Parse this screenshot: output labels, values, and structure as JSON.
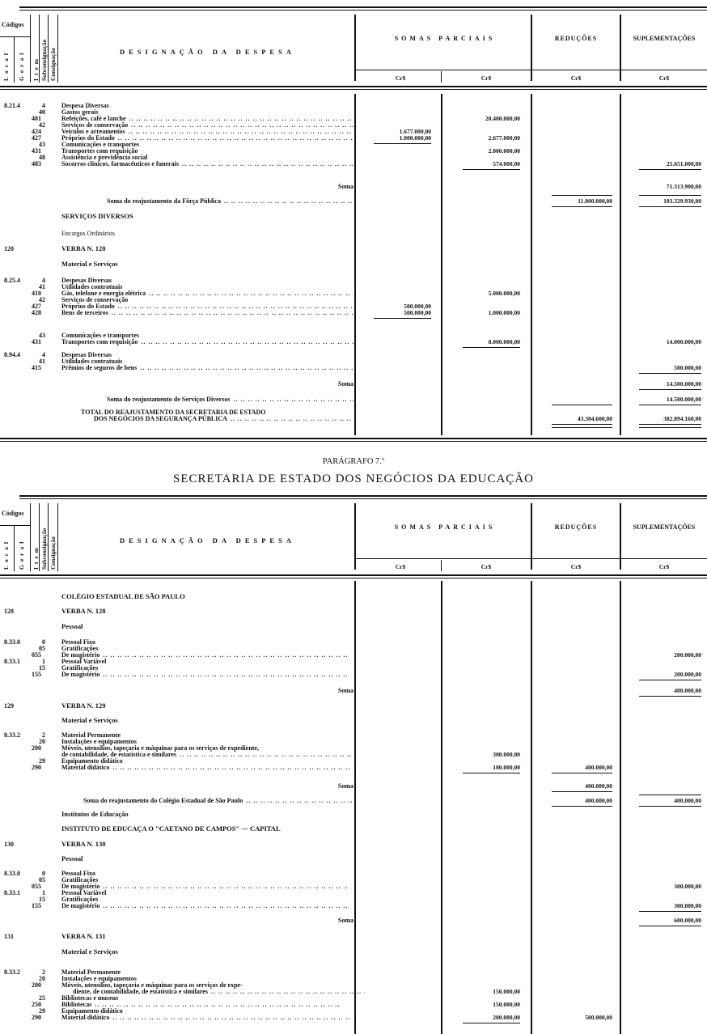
{
  "header": {
    "codigos": "Códigos",
    "local": "Local",
    "geral": "Geral",
    "item": "Item",
    "subconsignacao": "Subconsignação",
    "consignacao": "Consignação",
    "designacao": "DESIGNAÇÃO DA DESPESA",
    "somas_parciais": "SOMAS PARCIAIS",
    "reducoes": "REDUÇÕES",
    "suplementacoes": "SUPLEMENTAÇÕES",
    "currency": "Cr$"
  },
  "paragraph": {
    "number": "PARÁGRAFO 7.º",
    "title": "SECRETARIA DE ESTADO DOS NEGÓCIOS DA EDUCAÇÃO"
  },
  "sections": [
    {
      "rows": [
        {
          "code": "8.21.4",
          "num": "4",
          "text": "Despesa Diversas"
        },
        {
          "num": "40",
          "text": "Gastos gerais"
        },
        {
          "num": "401",
          "text": "Refeições, café e lanche",
          "dots": true,
          "c2": {
            "v": "20.400.000,00"
          }
        },
        {
          "num": "42",
          "text": "Serviços de conservação",
          "dots": true
        },
        {
          "num": "424",
          "text": "Veículos e arreamentos",
          "dots": true,
          "c1": {
            "v": "1.677.000,00"
          }
        },
        {
          "num": "427",
          "text": "Próprios do Estado",
          "dots": true,
          "c1": {
            "v": "1.000.000,00",
            "below": true
          },
          "c2": {
            "v": "2.677.000,00"
          }
        },
        {
          "num": "43",
          "text": "Comunicações e transportes"
        },
        {
          "num": "431",
          "text": "Transportes com requisição",
          "c2": {
            "v": "2.000.000,00"
          }
        },
        {
          "num": "48",
          "text": "Assistência e previdência social"
        },
        {
          "num": "483",
          "text": "Socorros clínicos, farmacêuticos e funerais",
          "dots": true,
          "c2": {
            "v": "574.000,00",
            "below": true
          },
          "c4": {
            "v": "25.651.000,00",
            "below": true
          }
        },
        {
          "style": "soma",
          "text": "Soma",
          "c4": {
            "v": "71.313.900,00"
          }
        },
        {
          "style": "subtotal",
          "text": "Soma do reajustamento da Fôrça Pública",
          "dots": true,
          "c3": {
            "v": "11.000.000,00",
            "above": true,
            "below": true
          },
          "c4": {
            "v": "103.329.930,00",
            "above": true,
            "below": true
          }
        },
        {
          "style": "heading",
          "text": "SERVIÇOS DIVERSOS"
        },
        {
          "style": "plain",
          "text": "Encargos Ordinários"
        },
        {
          "code": "120",
          "style": "heading",
          "text": "VERBA N. 120"
        },
        {
          "style": "heading",
          "text": "Material e Serviços"
        },
        {
          "code": "8.25.4",
          "num": "4",
          "text": "Despesas Diversas"
        },
        {
          "num": "41",
          "text": "Utilidades contratuais"
        },
        {
          "num": "410",
          "text": "Gás, telefone e energia elétrica",
          "dots": true,
          "c2": {
            "v": "5.000.000,00"
          }
        },
        {
          "num": "42",
          "text": "Serviços de conservação"
        },
        {
          "num": "427",
          "text": "Próprios do Estado",
          "dots": true,
          "c1": {
            "v": "500.000,00"
          }
        },
        {
          "num": "428",
          "text": "Bens de terceiros",
          "dots": true,
          "c1": {
            "v": "500.000,00",
            "below": true
          },
          "c2": {
            "v": "1.000.000,00"
          }
        },
        {
          "num": "43",
          "text": "Comunicações e transportes"
        },
        {
          "num": "431",
          "text": "Transportes com requisição",
          "dots": true,
          "c2": {
            "v": "8.000.000,00",
            "below": true
          },
          "c4": {
            "v": "14.000.000,00"
          }
        },
        {
          "code": "8.94.4",
          "num": "4",
          "text": "Despesas Diversas"
        },
        {
          "num": "41",
          "text": "Utilidades contratuais"
        },
        {
          "num": "415",
          "text": "Prêmios de seguros de bens",
          "dots": true,
          "c4": {
            "v": "500.000,00",
            "below": true
          }
        },
        {
          "style": "soma",
          "text": "Soma",
          "c4": {
            "v": "14.500.000,00",
            "below": true
          }
        },
        {
          "style": "subtotal",
          "text": "Soma do reajustamento de Serviços Diversos",
          "dots": true,
          "c4": {
            "v": "14.500.000,00",
            "below": true
          },
          "c3": {
            "v": "",
            "below": true
          }
        },
        {
          "style": "total",
          "text": "TOTAL DO REAJUSTAMENTO DA SECRETARIA DE ESTADO"
        },
        {
          "style": "total2",
          "text": "DOS NEGÓCIOS DA SEGURANÇA PÚBLICA",
          "dots": true,
          "c3": {
            "v": "43.304.600,00",
            "below": true,
            "double": true
          },
          "c4": {
            "v": "382.894.160,00",
            "below": true,
            "double": true
          }
        }
      ]
    },
    {
      "rows": [
        {
          "style": "heading",
          "text": "COLÉGIO ESTADUAL DE SÃO PAULO"
        },
        {
          "code": "128",
          "style": "heading",
          "text": "VERBA N. 128"
        },
        {
          "style": "heading",
          "text": "Pessoal"
        },
        {
          "code": "8.33.0",
          "num": "0",
          "text": "Pessoal Fixo"
        },
        {
          "num": "05",
          "text": "Gratificações"
        },
        {
          "num": "055",
          "text": "De magistério",
          "dots": true,
          "c4": {
            "v": "200.000,00"
          }
        },
        {
          "code": "8.33.1",
          "num": "1",
          "text": "Pessoal Variável"
        },
        {
          "num": "15",
          "text": "Gratificações"
        },
        {
          "num": "155",
          "text": "De magistério",
          "dots": true,
          "c4": {
            "v": "200.000,00",
            "below": true
          }
        },
        {
          "style": "soma",
          "text": "Soma",
          "c4": {
            "v": "400.000,00",
            "below": true
          }
        },
        {
          "code": "129",
          "style": "heading",
          "text": "VERBA N. 129"
        },
        {
          "style": "heading",
          "text": "Material e Serviços"
        },
        {
          "code": "8.33.2",
          "num": "2",
          "text": "Material Permanente"
        },
        {
          "num": "20",
          "text": "Instalações e equipamentos"
        },
        {
          "num": "200",
          "text": "Móveis, utensílios, tapeçaria e máquinas para os serviços de expediente,"
        },
        {
          "text": "de contabilidade, de estatística e similares",
          "dots": true,
          "c2": {
            "v": "300.000,00"
          }
        },
        {
          "num": "29",
          "text": "Equipamento didático"
        },
        {
          "num": "290",
          "text": "Material didático",
          "dots": true,
          "c2": {
            "v": "100.000,00",
            "below": true
          },
          "c3": {
            "v": "400.000,00",
            "below": true
          }
        },
        {
          "style": "soma",
          "text": "Soma",
          "c3": {
            "v": "400.000,00",
            "below": true
          }
        },
        {
          "style": "subtotal2",
          "text": "Soma do reajustamento do Colégio Estadual de São Paulo",
          "dots": true,
          "c3": {
            "v": "400.000,00",
            "below": true
          },
          "c4": {
            "v": "400.000,00",
            "above": true,
            "below": true
          }
        },
        {
          "style": "heading",
          "text": "Institutos de Educação"
        },
        {
          "style": "heading",
          "text": "INSTITUTO DE EDUCAÇA O \"CAETANO DE CAMPOS\" — CAPITAL"
        },
        {
          "code": "130",
          "style": "heading",
          "text": "VERBA N. 130"
        },
        {
          "style": "heading",
          "text": "Pessoal"
        },
        {
          "code": "8.33.0",
          "num": "0",
          "text": "Pessoal Fixo"
        },
        {
          "num": "05",
          "text": "Gratificações"
        },
        {
          "num": "055",
          "text": "De magistério",
          "dots": true,
          "c4": {
            "v": "300.000,00"
          }
        },
        {
          "code": "8.33.1",
          "num": "1",
          "text": "Pessoal Variável"
        },
        {
          "num": "15",
          "text": "Gratificações"
        },
        {
          "num": "155",
          "text": "De magistério",
          "dots": true,
          "c4": {
            "v": "300.000,00",
            "below": true
          }
        },
        {
          "style": "soma",
          "text": "Soma",
          "c4": {
            "v": "600.000,00",
            "below": true
          }
        },
        {
          "code": "131",
          "style": "heading",
          "text": "VERBA N. 131"
        },
        {
          "style": "heading",
          "text": "Material e Serviços"
        },
        {
          "code": "8.33.2",
          "num": "2",
          "text": "Material Permanente"
        },
        {
          "num": "20",
          "text": "Instalações e equipamentos"
        },
        {
          "num": "200",
          "text": "Móveis, utensílios, tapeçaria e máquinas para os serviços de expe-"
        },
        {
          "style": "cont",
          "text": "diente, de contabilidade, de estatística e similares",
          "dots": true,
          "c2": {
            "v": "150.000,00"
          }
        },
        {
          "num": "25",
          "text": "Bibliotecas e museus"
        },
        {
          "num": "250",
          "text": "Bibliotecas",
          "dots": true,
          "c2": {
            "v": "150.000,00"
          }
        },
        {
          "num": "29",
          "text": "Equipamento didático"
        },
        {
          "num": "290",
          "text": "Material didático",
          "dots": true,
          "c2": {
            "v": "200.000,00",
            "below": true
          },
          "c3": {
            "v": "500.000,00"
          }
        }
      ]
    }
  ]
}
